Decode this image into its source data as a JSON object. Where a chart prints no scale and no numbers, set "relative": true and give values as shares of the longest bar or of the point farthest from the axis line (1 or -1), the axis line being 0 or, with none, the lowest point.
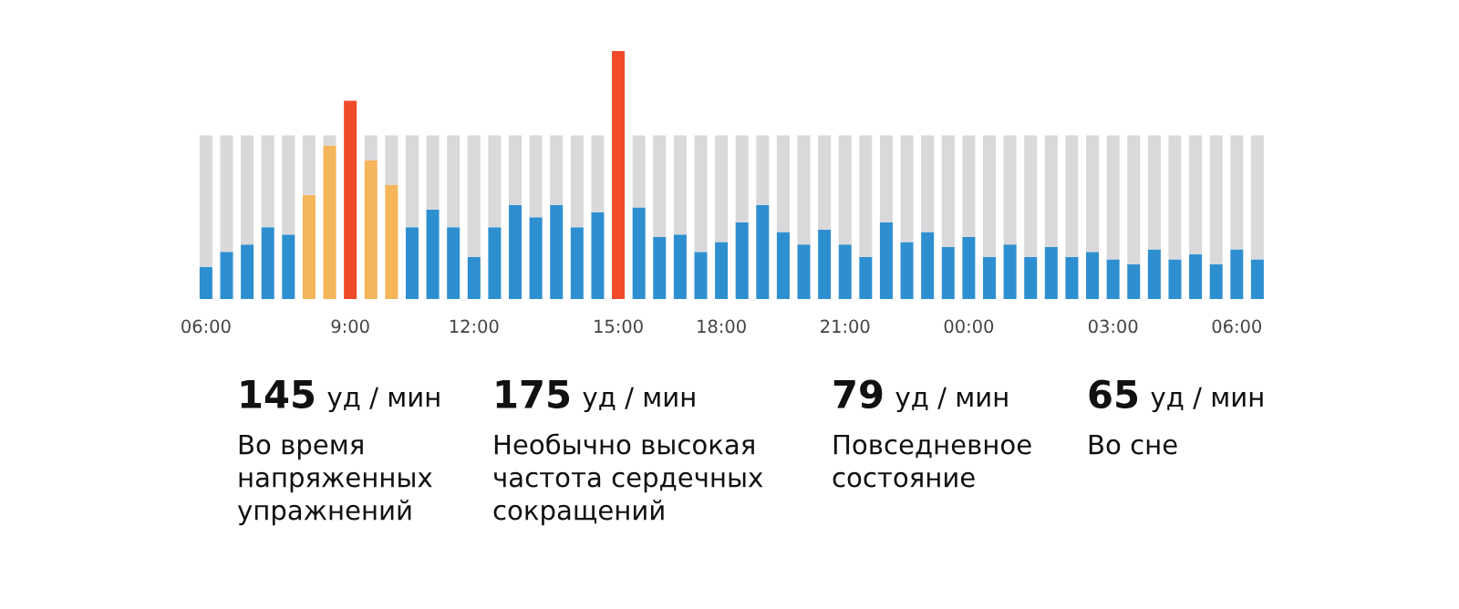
{
  "chart_data": {
    "type": "bar",
    "relative": true,
    "stacked": true,
    "legend": false,
    "grid": false,
    "categories": [
      "06:00",
      null,
      null,
      null,
      null,
      null,
      null,
      "9:00",
      null,
      null,
      null,
      null,
      null,
      "12:00",
      null,
      null,
      null,
      null,
      null,
      null,
      "15:00",
      null,
      null,
      null,
      null,
      "18:00",
      null,
      null,
      null,
      null,
      null,
      "21:00",
      null,
      null,
      null,
      null,
      null,
      "00:00",
      null,
      null,
      null,
      null,
      null,
      null,
      "03:00",
      null,
      null,
      null,
      null,
      null,
      "06:00",
      null
    ],
    "series": [
      {
        "colors": [
          "#2e8fd0",
          "#2e8fd0",
          "#2e8fd0",
          "#2e8fd0",
          "#2e8fd0",
          "#f5b55a",
          "#f5b55a",
          "#f04a2a",
          "#f5b55a",
          "#f5b55a",
          "#2e8fd0",
          "#2e8fd0",
          "#2e8fd0",
          "#2e8fd0",
          "#2e8fd0",
          "#2e8fd0",
          "#2e8fd0",
          "#2e8fd0",
          "#2e8fd0",
          "#2e8fd0",
          "#f04a2a",
          "#2e8fd0",
          "#2e8fd0",
          "#2e8fd0",
          "#2e8fd0",
          "#2e8fd0",
          "#2e8fd0",
          "#2e8fd0",
          "#2e8fd0",
          "#2e8fd0",
          "#2e8fd0",
          "#2e8fd0",
          "#2e8fd0",
          "#2e8fd0",
          "#2e8fd0",
          "#2e8fd0",
          "#2e8fd0",
          "#2e8fd0",
          "#2e8fd0",
          "#2e8fd0",
          "#2e8fd0",
          "#2e8fd0",
          "#2e8fd0",
          "#2e8fd0",
          "#2e8fd0",
          "#2e8fd0",
          "#2e8fd0",
          "#2e8fd0",
          "#2e8fd0",
          "#2e8fd0",
          "#2e8fd0",
          "#2e8fd0"
        ],
        "values": [
          0.13,
          0.19,
          0.22,
          0.29,
          0.26,
          0.42,
          0.62,
          0.8,
          0.56,
          0.46,
          0.29,
          0.36,
          0.29,
          0.17,
          0.29,
          0.38,
          0.33,
          0.38,
          0.29,
          0.35,
          1,
          0.37,
          0.25,
          0.26,
          0.19,
          0.23,
          0.31,
          0.38,
          0.27,
          0.22,
          0.28,
          0.22,
          0.17,
          0.31,
          0.23,
          0.27,
          0.21,
          0.25,
          0.17,
          0.22,
          0.17,
          0.21,
          0.17,
          0.19,
          0.16,
          0.14,
          0.2,
          0.16,
          0.18,
          0.14,
          0.2,
          0.16
        ]
      },
      {
        "color": "#d9d9db",
        "values": [
          0.53,
          0.47,
          0.44,
          0.37,
          0.4,
          0.24,
          0.04,
          0,
          0.1,
          0.2,
          0.37,
          0.3,
          0.37,
          0.49,
          0.37,
          0.28,
          0.33,
          0.28,
          0.37,
          0.31,
          0,
          0.29,
          0.41,
          0.4,
          0.47,
          0.43,
          0.35,
          0.28,
          0.39,
          0.44,
          0.38,
          0.44,
          0.49,
          0.35,
          0.43,
          0.39,
          0.45,
          0.41,
          0.49,
          0.44,
          0.49,
          0.45,
          0.49,
          0.47,
          0.5,
          0.52,
          0.46,
          0.5,
          0.48,
          0.52,
          0.46,
          0.5
        ]
      }
    ],
    "annotations": [
      "145",
      "уд / мин",
      "Во время\nнапряженных\nупражнений",
      "175",
      "уд / мин",
      "Необычно высокая\nчастота сердечных\nсокращений",
      "79",
      "уд / мин",
      "Повседневное\nсостояние",
      "65",
      "уд / мин",
      "Во сне"
    ]
  }
}
